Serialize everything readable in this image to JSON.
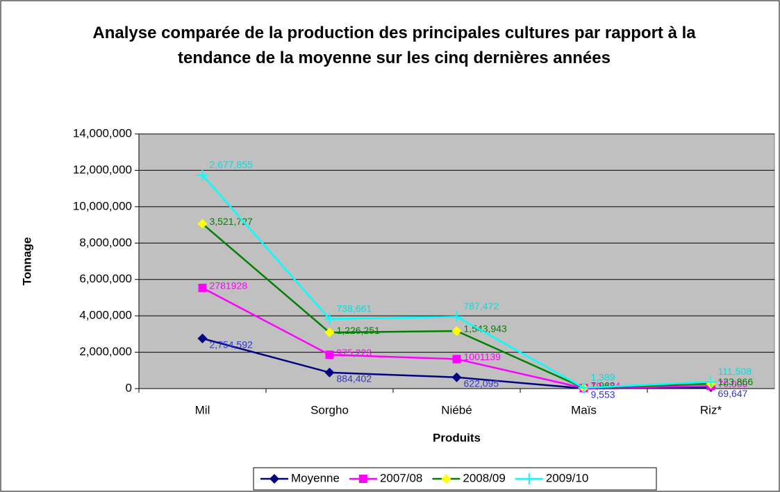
{
  "chart_data": {
    "type": "line",
    "stacked": true,
    "title": "Analyse comparée de la production des principales cultures par rapport à la tendance de la moyenne sur les cinq dernières années",
    "x_label": "Produits",
    "y_label": "Tonnage",
    "categories": [
      "Mil",
      "Sorgho",
      "Niébé",
      "Maïs",
      "Riz*"
    ],
    "ylim": [
      0,
      14000000
    ],
    "yticks": [
      {
        "value": 0,
        "label": "0"
      },
      {
        "value": 2000000,
        "label": "2,000,000"
      },
      {
        "value": 4000000,
        "label": "4,000,000"
      },
      {
        "value": 6000000,
        "label": "6,000,000"
      },
      {
        "value": 8000000,
        "label": "8,000,000"
      },
      {
        "value": 10000000,
        "label": "10,000,000"
      },
      {
        "value": 12000000,
        "label": "12,000,000"
      },
      {
        "value": 14000000,
        "label": "14,000,000"
      }
    ],
    "grid": true,
    "legend": "bottom",
    "series": [
      {
        "name": "Moyenne",
        "color": "#000080",
        "marker": "diamond",
        "marker_color": "#000080",
        "label_color": "#3333cc",
        "values": [
          2754592,
          884402,
          622095,
          9553,
          69647
        ],
        "value_labels": [
          "2,754,592",
          "884,402",
          "622,095",
          "9,553",
          "69,647"
        ]
      },
      {
        "name": "2007/08",
        "color": "#ff00ff",
        "marker": "square",
        "marker_color": "#ff00ff",
        "label_color": "#ff00ff",
        "values": [
          2781928,
          975223,
          1001139,
          19324,
          70000
        ],
        "value_labels": [
          "2781928",
          "975,223",
          "1001139",
          "19,324",
          "70,000"
        ]
      },
      {
        "name": "2008/09",
        "color": "#008000",
        "marker": "diamond",
        "marker_color": "#ffff00",
        "label_color": "#008000",
        "values": [
          3521727,
          1226251,
          1543943,
          7968,
          123866
        ],
        "value_labels": [
          "3,521,727",
          "1,226,251",
          "1,543,943",
          "7,968",
          "123,866"
        ]
      },
      {
        "name": "2009/10",
        "color": "#00ffff",
        "marker": "plus",
        "marker_color": "#00ffff",
        "label_color": "#00e0e0",
        "values": [
          2677855,
          738661,
          787472,
          1389,
          111508
        ],
        "value_labels": [
          "2,677,855",
          "738,661",
          "787,472",
          "1,389",
          "111,508"
        ]
      }
    ]
  }
}
